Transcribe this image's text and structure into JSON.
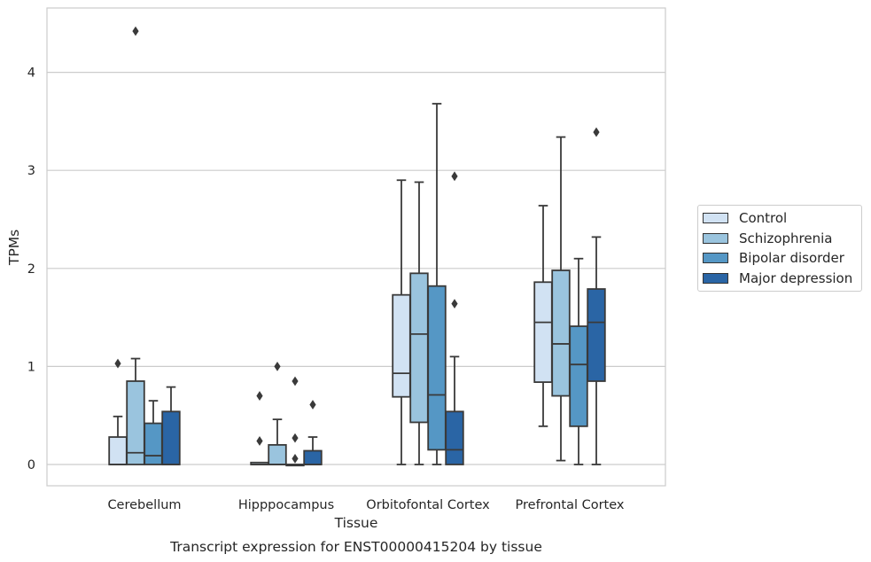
{
  "chart_data": {
    "type": "box",
    "title": "Transcript expression for ENST00000415204 by tissue",
    "xlabel": "Tissue",
    "ylabel": "TPMs",
    "ylim": [
      -0.22,
      4.67
    ],
    "yticks": [
      0,
      1,
      2,
      3,
      4
    ],
    "grid": "horizontal",
    "legend_position": "right",
    "categories": [
      "Cerebellum",
      "Hipppocampus",
      "Orbitofontal Cortex",
      "Prefrontal Cortex"
    ],
    "series": [
      {
        "name": "Control",
        "color": "#d1e2f3",
        "boxes": [
          {
            "q1": 0.0,
            "median": 0.0,
            "q3": 0.28,
            "whisker_low": 0.0,
            "whisker_high": 0.49,
            "outliers": [
              1.03
            ]
          },
          {
            "q1": 0.0,
            "median": 0.0,
            "q3": 0.02,
            "whisker_low": 0.0,
            "whisker_high": 0.02,
            "outliers": [
              0.24,
              0.7
            ]
          },
          {
            "q1": 0.69,
            "median": 0.93,
            "q3": 1.73,
            "whisker_low": 0.0,
            "whisker_high": 2.9,
            "outliers": []
          },
          {
            "q1": 0.84,
            "median": 1.45,
            "q3": 1.86,
            "whisker_low": 0.39,
            "whisker_high": 2.64,
            "outliers": []
          }
        ]
      },
      {
        "name": "Schizophrenia",
        "color": "#9ac4de",
        "boxes": [
          {
            "q1": 0.0,
            "median": 0.12,
            "q3": 0.85,
            "whisker_low": 0.0,
            "whisker_high": 1.08,
            "outliers": [
              4.42
            ]
          },
          {
            "q1": 0.0,
            "median": 0.0,
            "q3": 0.2,
            "whisker_low": 0.0,
            "whisker_high": 0.46,
            "outliers": [
              1.0
            ]
          },
          {
            "q1": 0.43,
            "median": 1.33,
            "q3": 1.95,
            "whisker_low": 0.0,
            "whisker_high": 2.88,
            "outliers": []
          },
          {
            "q1": 0.7,
            "median": 1.23,
            "q3": 1.98,
            "whisker_low": 0.04,
            "whisker_high": 3.34,
            "outliers": []
          }
        ]
      },
      {
        "name": "Bipolar disorder",
        "color": "#5597c5",
        "boxes": [
          {
            "q1": 0.0,
            "median": 0.09,
            "q3": 0.42,
            "whisker_low": 0.0,
            "whisker_high": 0.65,
            "outliers": []
          },
          {
            "q1": 0.0,
            "median": 0.0,
            "q3": 0.0,
            "whisker_low": 0.0,
            "whisker_high": 0.0,
            "outliers": [
              0.06,
              0.27,
              0.85
            ]
          },
          {
            "q1": 0.15,
            "median": 0.71,
            "q3": 1.82,
            "whisker_low": 0.0,
            "whisker_high": 3.68,
            "outliers": []
          },
          {
            "q1": 0.39,
            "median": 1.02,
            "q3": 1.41,
            "whisker_low": 0.0,
            "whisker_high": 2.1,
            "outliers": []
          }
        ]
      },
      {
        "name": "Major depression",
        "color": "#2a65a5",
        "boxes": [
          {
            "q1": 0.0,
            "median": 0.0,
            "q3": 0.54,
            "whisker_low": 0.0,
            "whisker_high": 0.79,
            "outliers": []
          },
          {
            "q1": 0.0,
            "median": 0.0,
            "q3": 0.14,
            "whisker_low": 0.0,
            "whisker_high": 0.28,
            "outliers": [
              0.61
            ]
          },
          {
            "q1": 0.0,
            "median": 0.15,
            "q3": 0.54,
            "whisker_low": 0.0,
            "whisker_high": 1.1,
            "outliers": [
              1.64,
              2.94
            ]
          },
          {
            "q1": 0.85,
            "median": 1.45,
            "q3": 1.79,
            "whisker_low": 0.0,
            "whisker_high": 2.32,
            "outliers": [
              3.39
            ]
          }
        ]
      }
    ]
  }
}
